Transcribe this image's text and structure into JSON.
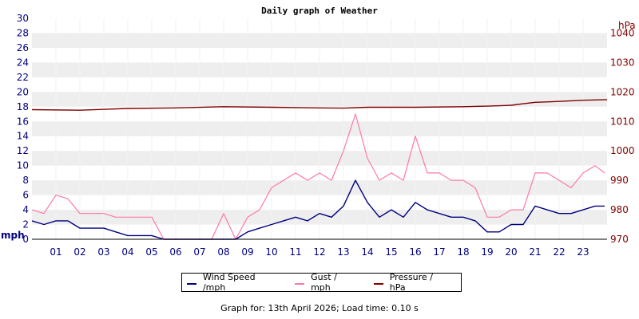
{
  "chart_data": {
    "type": "line",
    "title": "Daily graph of Weather",
    "ylabel_left": "mph",
    "ylabel_right": "hPa",
    "ylim_left": [
      0,
      30
    ],
    "yticks_left": [
      "0",
      "2",
      "4",
      "6",
      "8",
      "10",
      "12",
      "14",
      "16",
      "18",
      "20",
      "22",
      "24",
      "26",
      "28",
      "30"
    ],
    "ylim_right": [
      970,
      1045
    ],
    "yticks_right": [
      "970",
      "980",
      "990",
      "1000",
      "1010",
      "1020",
      "1030",
      "1040"
    ],
    "xlim": [
      0,
      24
    ],
    "x_tick_labels": [
      "01",
      "02",
      "03",
      "04",
      "05",
      "06",
      "07",
      "08",
      "09",
      "10",
      "11",
      "12",
      "13",
      "14",
      "15",
      "16",
      "17",
      "18",
      "19",
      "20",
      "21",
      "22",
      "23"
    ],
    "grid": "horizontal alternating bands",
    "legend": "bottom-center",
    "colors": {
      "wind": "#000080",
      "gust": "#ff77aa",
      "pressure": "#800000",
      "left_axis": "#000080",
      "right_axis": "#800000",
      "band": "#eeeeee"
    },
    "series": [
      {
        "name": "Wind Speed /mph",
        "axis": "left",
        "x": [
          0,
          0.5,
          1,
          1.5,
          2,
          2.5,
          3,
          3.5,
          4,
          4.5,
          5,
          5.5,
          6,
          6.5,
          7,
          7.5,
          8,
          8.5,
          9,
          9.5,
          10,
          10.5,
          11,
          11.5,
          12,
          12.5,
          13,
          13.5,
          14,
          14.5,
          15,
          15.5,
          16,
          16.5,
          17,
          17.5,
          18,
          18.5,
          19,
          19.5,
          20,
          20.5,
          21,
          21.5,
          22,
          22.5,
          23,
          23.5,
          23.9
        ],
        "values": [
          2.5,
          2.0,
          2.5,
          2.5,
          1.5,
          1.5,
          1.5,
          1.0,
          0.5,
          0.5,
          0.5,
          0,
          0,
          0,
          0,
          0,
          0,
          0,
          1.0,
          1.5,
          2.0,
          2.5,
          3.0,
          2.5,
          3.5,
          3.0,
          4.5,
          8.0,
          5.0,
          3.0,
          4.0,
          3.0,
          5.0,
          4.0,
          3.5,
          3.0,
          3.0,
          2.5,
          1.0,
          1.0,
          2.0,
          2.0,
          4.5,
          4.0,
          3.5,
          3.5,
          4.0,
          4.5,
          4.5
        ]
      },
      {
        "name": "Gust / mph",
        "axis": "left",
        "x": [
          0,
          0.5,
          1,
          1.5,
          2,
          2.5,
          3,
          3.5,
          4,
          4.5,
          5,
          5.5,
          6,
          6.5,
          7,
          7.5,
          8,
          8.5,
          9,
          9.5,
          10,
          10.5,
          11,
          11.5,
          12,
          12.5,
          13,
          13.5,
          14,
          14.5,
          15,
          15.5,
          16,
          16.5,
          17,
          17.5,
          18,
          18.5,
          19,
          19.5,
          20,
          20.5,
          21,
          21.5,
          22,
          22.5,
          23,
          23.5,
          23.9
        ],
        "values": [
          4.0,
          3.5,
          6.0,
          5.5,
          3.5,
          3.5,
          3.5,
          3.0,
          3.0,
          3.0,
          3.0,
          0,
          0,
          0,
          0,
          0,
          3.5,
          0,
          3.0,
          4.0,
          7.0,
          8.0,
          9.0,
          8.0,
          9.0,
          8.0,
          12.0,
          17.0,
          11.0,
          8.0,
          9.0,
          8.0,
          14.0,
          9.0,
          9.0,
          8.0,
          8.0,
          7.0,
          3.0,
          3.0,
          4.0,
          4.0,
          9.0,
          9.0,
          8.0,
          7.0,
          9.0,
          10.0,
          9.0
        ]
      },
      {
        "name": "Pressure / hPa",
        "axis": "right",
        "x": [
          0,
          2,
          4,
          6,
          8,
          10,
          12,
          13,
          14,
          16,
          18,
          19,
          20,
          20.5,
          21,
          22,
          23,
          24
        ],
        "values": [
          1014.0,
          1013.8,
          1014.4,
          1014.6,
          1015.0,
          1014.8,
          1014.6,
          1014.5,
          1014.8,
          1014.8,
          1015.0,
          1015.2,
          1015.5,
          1016.0,
          1016.5,
          1016.8,
          1017.2,
          1017.4
        ]
      }
    ]
  },
  "legend_labels": {
    "wind": "Wind Speed /mph",
    "gust": "Gust / mph",
    "pressure": "Pressure / hPa"
  },
  "footer": "Graph for: 13th April 2026; Load time: 0.10 s"
}
